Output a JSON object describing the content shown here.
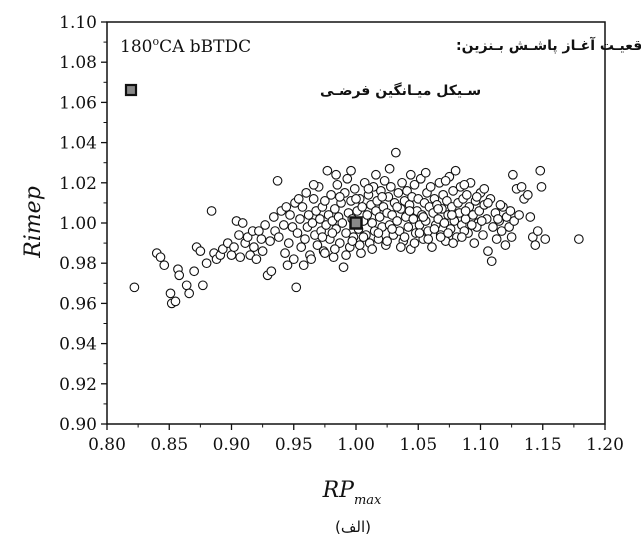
{
  "chart_data": {
    "type": "scatter",
    "xlabel": "RP",
    "xlabel_sub": "max",
    "ylabel": "Rimep",
    "xlim": [
      0.8,
      1.2
    ],
    "ylim": [
      0.9,
      1.1
    ],
    "xticks": [
      "0.80",
      "0.85",
      "0.90",
      "0.95",
      "1.00",
      "1.05",
      "1.10",
      "1.15",
      "1.20"
    ],
    "yticks": [
      "0.90",
      "0.92",
      "0.94",
      "0.96",
      "0.98",
      "1.00",
      "1.02",
      "1.04",
      "1.06",
      "1.08",
      "1.10"
    ],
    "grid": false,
    "annotation_latin": "180",
    "annotation_sup": "o",
    "annotation_latin_rest": "CA bBTDC",
    "annotation_arabic": "موقعیـت آغـاز پاشـش بـنزین:",
    "legend_label": "سـیکل میـانگین فرضـی",
    "legend_position": "top-left",
    "caption": "(الف)",
    "reference_point": {
      "x": 1.0,
      "y": 1.0
    },
    "series": [
      {
        "marker": "open-circle",
        "points": [
          [
            0.822,
            0.968
          ],
          [
            0.84,
            0.985
          ],
          [
            0.843,
            0.983
          ],
          [
            0.846,
            0.979
          ],
          [
            0.851,
            0.965
          ],
          [
            0.852,
            0.96
          ],
          [
            0.855,
            0.961
          ],
          [
            0.857,
            0.977
          ],
          [
            0.858,
            0.974
          ],
          [
            0.864,
            0.969
          ],
          [
            0.866,
            0.965
          ],
          [
            0.87,
            0.976
          ],
          [
            0.872,
            0.988
          ],
          [
            0.875,
            0.986
          ],
          [
            0.877,
            0.969
          ],
          [
            0.88,
            0.98
          ],
          [
            0.884,
            1.006
          ],
          [
            0.886,
            0.985
          ],
          [
            0.888,
            0.982
          ],
          [
            0.891,
            0.984
          ],
          [
            0.893,
            0.987
          ],
          [
            0.897,
            0.99
          ],
          [
            0.9,
            0.984
          ],
          [
            0.902,
            0.988
          ],
          [
            0.904,
            1.001
          ],
          [
            0.906,
            0.994
          ],
          [
            0.907,
            0.983
          ],
          [
            0.909,
            1.0
          ],
          [
            0.911,
            0.99
          ],
          [
            0.913,
            0.993
          ],
          [
            0.915,
            0.984
          ],
          [
            0.917,
            0.996
          ],
          [
            0.918,
            0.988
          ],
          [
            0.92,
            0.982
          ],
          [
            0.922,
            0.996
          ],
          [
            0.924,
            0.992
          ],
          [
            0.925,
            0.986
          ],
          [
            0.927,
            0.999
          ],
          [
            0.929,
            0.974
          ],
          [
            0.931,
            0.991
          ],
          [
            0.932,
            0.976
          ],
          [
            0.934,
            1.003
          ],
          [
            0.935,
            0.996
          ],
          [
            0.937,
            1.021
          ],
          [
            0.938,
            0.993
          ],
          [
            0.94,
            1.006
          ],
          [
            0.942,
            0.999
          ],
          [
            0.943,
            0.985
          ],
          [
            0.944,
            1.008
          ],
          [
            0.946,
            0.99
          ],
          [
            0.947,
            1.004
          ],
          [
            0.949,
            0.998
          ],
          [
            0.95,
            0.982
          ],
          [
            0.951,
            1.01
          ],
          [
            0.952,
            0.968
          ],
          [
            0.953,
            0.995
          ],
          [
            0.955,
            1.002
          ],
          [
            0.956,
            0.988
          ],
          [
            0.957,
            1.008
          ],
          [
            0.959,
            0.992
          ],
          [
            0.96,
            1.015
          ],
          [
            0.961,
            0.998
          ],
          [
            0.962,
            1.004
          ],
          [
            0.963,
            0.984
          ],
          [
            0.965,
            1.0
          ],
          [
            0.966,
            1.012
          ],
          [
            0.967,
            0.994
          ],
          [
            0.968,
            1.006
          ],
          [
            0.969,
            0.989
          ],
          [
            0.97,
            1.018
          ],
          [
            0.971,
            1.002
          ],
          [
            0.972,
            0.996
          ],
          [
            0.973,
            1.008
          ],
          [
            0.974,
            0.986
          ],
          [
            0.975,
            1.011
          ],
          [
            0.976,
            0.999
          ],
          [
            0.977,
            1.026
          ],
          [
            0.978,
            1.004
          ],
          [
            0.979,
            0.992
          ],
          [
            0.98,
            1.014
          ],
          [
            0.981,
            1.001
          ],
          [
            0.982,
            0.983
          ],
          [
            0.983,
            1.007
          ],
          [
            0.984,
            0.997
          ],
          [
            0.985,
            1.019
          ],
          [
            0.986,
            1.003
          ],
          [
            0.987,
            0.99
          ],
          [
            0.988,
            1.01
          ],
          [
            0.989,
            1.0
          ],
          [
            0.99,
            0.978
          ],
          [
            0.991,
            1.015
          ],
          [
            0.992,
            0.995
          ],
          [
            0.993,
            1.022
          ],
          [
            0.994,
            1.005
          ],
          [
            0.995,
            0.988
          ],
          [
            0.996,
            1.011
          ],
          [
            0.997,
            1.002
          ],
          [
            0.998,
            0.993
          ],
          [
            0.999,
            1.017
          ],
          [
            1.001,
            1.006
          ],
          [
            1.002,
            0.997
          ],
          [
            1.003,
            1.012
          ],
          [
            1.004,
            0.985
          ],
          [
            1.005,
            1.008
          ],
          [
            1.006,
            1.001
          ],
          [
            1.007,
            1.02
          ],
          [
            1.008,
            0.994
          ],
          [
            1.009,
            1.004
          ],
          [
            1.01,
            1.014
          ],
          [
            1.011,
            0.99
          ],
          [
            1.012,
            1.009
          ],
          [
            1.013,
            1.0
          ],
          [
            1.014,
            1.018
          ],
          [
            1.015,
            0.996
          ],
          [
            1.016,
            1.006
          ],
          [
            1.017,
            1.011
          ],
          [
            1.018,
            0.992
          ],
          [
            1.019,
            1.003
          ],
          [
            1.02,
            1.016
          ],
          [
            1.021,
            0.998
          ],
          [
            1.022,
            1.008
          ],
          [
            1.023,
            1.021
          ],
          [
            1.024,
            0.989
          ],
          [
            1.025,
            1.005
          ],
          [
            1.026,
            1.013
          ],
          [
            1.027,
            0.999
          ],
          [
            1.028,
            1.018
          ],
          [
            1.029,
            1.004
          ],
          [
            1.03,
            0.994
          ],
          [
            1.031,
            1.01
          ],
          [
            1.032,
            1.035
          ],
          [
            1.033,
            1.001
          ],
          [
            1.034,
            1.015
          ],
          [
            1.035,
            0.996
          ],
          [
            1.036,
            1.007
          ],
          [
            1.037,
            1.02
          ],
          [
            1.038,
            0.991
          ],
          [
            1.039,
            1.011
          ],
          [
            1.04,
            1.003
          ],
          [
            1.041,
            1.016
          ],
          [
            1.042,
            0.998
          ],
          [
            1.043,
            1.009
          ],
          [
            1.044,
            0.987
          ],
          [
            1.045,
            1.013
          ],
          [
            1.046,
            1.002
          ],
          [
            1.047,
            1.019
          ],
          [
            1.048,
            0.995
          ],
          [
            1.049,
            1.006
          ],
          [
            1.05,
            1.012
          ],
          [
            1.051,
            0.999
          ],
          [
            1.052,
            1.022
          ],
          [
            1.053,
            1.004
          ],
          [
            1.054,
            0.992
          ],
          [
            1.055,
            1.01
          ],
          [
            1.056,
            1.001
          ],
          [
            1.057,
            1.015
          ],
          [
            1.058,
            0.996
          ],
          [
            1.059,
            1.008
          ],
          [
            1.06,
            1.018
          ],
          [
            1.061,
            0.988
          ],
          [
            1.062,
            1.005
          ],
          [
            1.063,
            1.012
          ],
          [
            1.064,
            0.999
          ],
          [
            1.065,
            1.009
          ],
          [
            1.066,
            1.002
          ],
          [
            1.067,
            1.02
          ],
          [
            1.068,
            0.994
          ],
          [
            1.069,
            1.007
          ],
          [
            1.07,
            1.014
          ],
          [
            1.071,
            1.0
          ],
          [
            1.072,
            0.991
          ],
          [
            1.073,
            1.011
          ],
          [
            1.074,
            1.004
          ],
          [
            1.075,
            1.023
          ],
          [
            1.076,
            0.997
          ],
          [
            1.077,
            1.008
          ],
          [
            1.078,
            1.016
          ],
          [
            1.079,
            1.001
          ],
          [
            1.08,
            1.026
          ],
          [
            1.081,
            0.993
          ],
          [
            1.082,
            1.01
          ],
          [
            1.083,
            1.005
          ],
          [
            1.084,
            1.018
          ],
          [
            1.085,
            0.999
          ],
          [
            1.086,
            1.012
          ],
          [
            1.088,
            1.002
          ],
          [
            1.089,
            1.014
          ],
          [
            1.09,
            0.995
          ],
          [
            1.091,
            1.008
          ],
          [
            1.092,
            1.02
          ],
          [
            1.094,
            1.004
          ],
          [
            1.095,
            0.99
          ],
          [
            1.096,
            1.011
          ],
          [
            1.098,
            1.0
          ],
          [
            1.099,
            1.006
          ],
          [
            1.1,
            1.015
          ],
          [
            1.102,
            0.994
          ],
          [
            1.103,
            1.009
          ],
          [
            1.105,
            1.002
          ],
          [
            1.106,
            0.986
          ],
          [
            1.108,
            1.012
          ],
          [
            1.109,
            0.981
          ],
          [
            1.11,
            0.998
          ],
          [
            1.112,
            1.005
          ],
          [
            1.113,
            0.992
          ],
          [
            1.115,
            1.001
          ],
          [
            1.117,
            0.996
          ],
          [
            1.118,
            1.008
          ],
          [
            1.12,
            0.989
          ],
          [
            1.121,
            1.003
          ],
          [
            1.123,
            0.998
          ],
          [
            1.125,
            0.993
          ],
          [
            1.126,
            1.024
          ],
          [
            1.127,
            1.001
          ],
          [
            1.129,
            1.017
          ],
          [
            1.131,
            1.004
          ],
          [
            1.133,
            1.018
          ],
          [
            1.135,
            1.012
          ],
          [
            1.138,
            1.014
          ],
          [
            1.14,
            1.003
          ],
          [
            1.142,
            0.993
          ],
          [
            1.144,
            0.989
          ],
          [
            1.146,
            0.996
          ],
          [
            1.148,
            1.026
          ],
          [
            1.149,
            1.018
          ],
          [
            1.152,
            0.992
          ],
          [
            1.179,
            0.992
          ],
          [
            0.958,
            0.979
          ],
          [
            0.964,
            0.982
          ],
          [
            0.975,
            0.985
          ],
          [
            0.983,
            0.987
          ],
          [
            0.992,
            0.984
          ],
          [
            1.003,
            0.989
          ],
          [
            1.013,
            0.987
          ],
          [
            1.025,
            0.991
          ],
          [
            1.036,
            0.988
          ],
          [
            1.047,
            0.99
          ],
          [
            1.058,
            0.992
          ],
          [
            1.068,
            0.993
          ],
          [
            1.078,
            0.99
          ],
          [
            1.087,
            0.996
          ],
          [
            1.097,
            0.998
          ],
          [
            0.945,
            0.979
          ],
          [
            0.954,
            1.012
          ],
          [
            0.966,
            1.019
          ],
          [
            0.984,
            1.024
          ],
          [
            0.996,
            1.026
          ],
          [
            1.016,
            1.024
          ],
          [
            1.027,
            1.027
          ],
          [
            1.044,
            1.024
          ],
          [
            1.056,
            1.025
          ],
          [
            1.072,
            1.021
          ],
          [
            1.087,
            1.019
          ],
          [
            1.103,
            1.017
          ],
          [
            1.116,
            1.009
          ],
          [
            1.124,
            1.006
          ],
          [
            0.973,
            0.993
          ],
          [
            0.981,
            0.995
          ],
          [
            0.997,
            0.991
          ],
          [
            1.006,
            0.993
          ],
          [
            1.018,
            0.995
          ],
          [
            1.029,
            0.997
          ],
          [
            1.039,
            0.993
          ],
          [
            1.051,
            0.995
          ],
          [
            1.063,
            0.997
          ],
          [
            1.074,
            0.995
          ],
          [
            1.085,
            0.993
          ],
          [
            1.093,
            0.999
          ],
          [
            1.101,
            1.001
          ],
          [
            0.987,
            1.013
          ],
          [
            1.0,
            1.012
          ],
          [
            1.01,
            1.017
          ],
          [
            1.021,
            1.013
          ],
          [
            1.033,
            1.008
          ],
          [
            1.043,
            1.006
          ],
          [
            1.054,
            1.003
          ],
          [
            1.066,
            1.007
          ],
          [
            1.077,
            1.004
          ],
          [
            1.088,
            1.006
          ],
          [
            1.097,
            1.013
          ],
          [
            1.106,
            1.01
          ],
          [
            1.114,
            1.002
          ]
        ]
      }
    ]
  }
}
